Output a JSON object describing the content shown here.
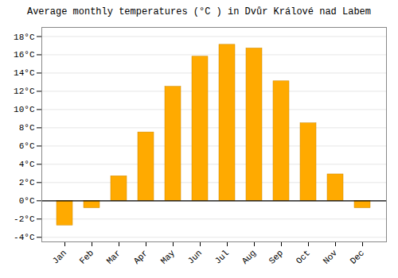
{
  "chart_data": {
    "type": "bar",
    "title": "Average monthly temperatures (°C ) in Dvůr Králové nad Labem",
    "categories": [
      "Jan",
      "Feb",
      "Mar",
      "Apr",
      "May",
      "Jun",
      "Jul",
      "Aug",
      "Sep",
      "Oct",
      "Nov",
      "Dec"
    ],
    "values": [
      -2.7,
      -0.8,
      2.7,
      7.5,
      12.5,
      15.8,
      17.1,
      16.7,
      13.1,
      8.5,
      2.9,
      -0.8
    ],
    "color": "#FFAA00",
    "ylim": [
      -4.5,
      19
    ],
    "yticks": [
      {
        "value": -4,
        "label": "-4°C"
      },
      {
        "value": -2,
        "label": "-2°C"
      },
      {
        "value": 0,
        "label": "0°C"
      },
      {
        "value": 2,
        "label": "2°C"
      },
      {
        "value": 4,
        "label": "4°C"
      },
      {
        "value": 6,
        "label": "6°C"
      },
      {
        "value": 8,
        "label": "8°C"
      },
      {
        "value": 10,
        "label": "10°C"
      },
      {
        "value": 12,
        "label": "12°C"
      },
      {
        "value": 14,
        "label": "14°C"
      },
      {
        "value": 16,
        "label": "16°C"
      },
      {
        "value": 18,
        "label": "18°C"
      }
    ],
    "grid": true
  }
}
